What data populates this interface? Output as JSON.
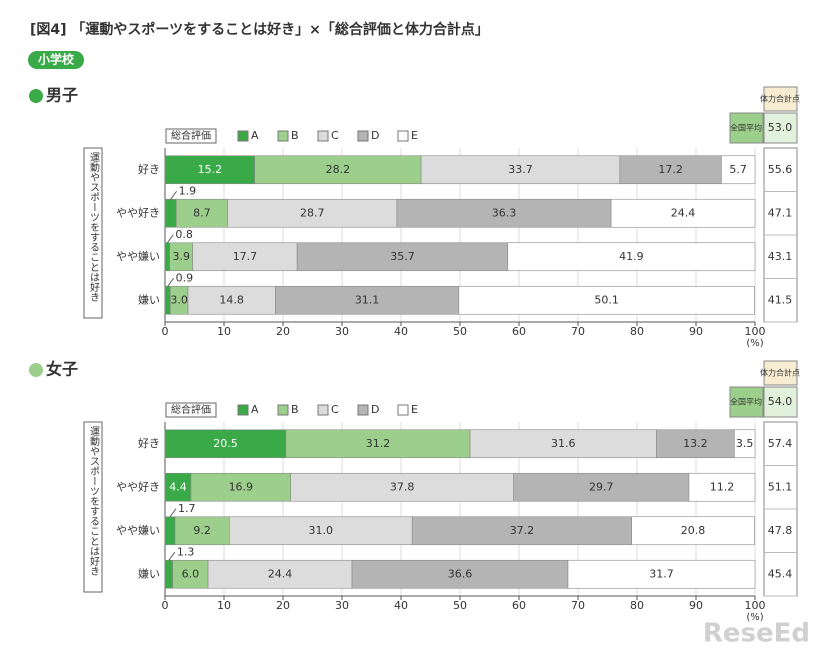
{
  "header": {
    "title": "[図4] 「運動やスポーツをすることは好き」×「総合評価と体力合計点」",
    "badge": "小学校"
  },
  "watermark": "ReseEd",
  "chart_data": [
    {
      "type": "bar",
      "orientation": "horizontal",
      "stacked": true,
      "title": "男子",
      "legend_title": "総合評価",
      "y_axis_label": "運動やスポーツをすることは好き",
      "categories": [
        "好き",
        "やや好き",
        "やや嫌い",
        "嫌い"
      ],
      "series": [
        {
          "name": "A",
          "color": "#3aaa48",
          "values": [
            15.2,
            1.9,
            0.8,
            0.9
          ]
        },
        {
          "name": "B",
          "color": "#9ccf8c",
          "values": [
            28.2,
            8.7,
            3.9,
            3.0
          ],
          "value_labels": [
            "28.2",
            "8.7",
            "3.9",
            "3.0"
          ]
        },
        {
          "name": "C",
          "color": "#dcdcdc",
          "values": [
            33.7,
            28.7,
            17.7,
            14.8
          ]
        },
        {
          "name": "D",
          "color": "#b4b4b4",
          "values": [
            17.2,
            36.3,
            35.7,
            31.1
          ]
        },
        {
          "name": "E",
          "color": "#ffffff",
          "values": [
            5.7,
            24.4,
            41.9,
            50.1
          ]
        }
      ],
      "xlim": [
        0,
        100
      ],
      "xticks": [
        0,
        10,
        20,
        30,
        40,
        50,
        60,
        70,
        80,
        90,
        100
      ],
      "x_unit": "(%)",
      "grid": true,
      "score_header": "体力合計点",
      "national": {
        "label": "全国平均",
        "value": 53,
        "value_label": "53.0"
      },
      "scores": {
        "values": [
          55.6,
          47.1,
          43.1,
          41.5
        ]
      }
    },
    {
      "type": "bar",
      "orientation": "horizontal",
      "stacked": true,
      "title": "女子",
      "legend_title": "総合評価",
      "y_axis_label": "運動やスポーツをすることは好き",
      "categories": [
        "好き",
        "やや好き",
        "やや嫌い",
        "嫌い"
      ],
      "series": [
        {
          "name": "A",
          "color": "#3aaa48",
          "values": [
            20.5,
            4.4,
            1.7,
            1.3
          ]
        },
        {
          "name": "B",
          "color": "#9ccf8c",
          "values": [
            31.2,
            16.9,
            9.2,
            6.0
          ],
          "value_labels": [
            "31.2",
            "16.9",
            "9.2",
            "6.0"
          ]
        },
        {
          "name": "C",
          "color": "#dcdcdc",
          "values": [
            31.6,
            37.8,
            31.0,
            24.4
          ],
          "value_labels": [
            "31.6",
            "37.8",
            "31.0",
            "24.4"
          ]
        },
        {
          "name": "D",
          "color": "#b4b4b4",
          "values": [
            13.2,
            29.7,
            37.2,
            36.6
          ]
        },
        {
          "name": "E",
          "color": "#ffffff",
          "values": [
            3.5,
            11.2,
            20.8,
            31.7
          ]
        }
      ],
      "xlim": [
        0,
        100
      ],
      "xticks": [
        0,
        10,
        20,
        30,
        40,
        50,
        60,
        70,
        80,
        90,
        100
      ],
      "x_unit": "(%)",
      "grid": true,
      "score_header": "体力合計点",
      "national": {
        "label": "全国平均",
        "value": 54,
        "value_label": "54.0"
      },
      "scores": {
        "values": [
          57.4,
          51.1,
          47.8,
          45.4
        ]
      }
    }
  ]
}
